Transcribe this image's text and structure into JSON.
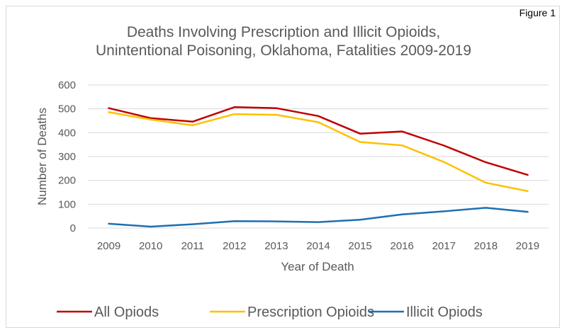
{
  "figure_label": "Figure 1",
  "chart_data": {
    "type": "line",
    "title_lines": [
      "Deaths Involving Prescription and Illicit Opioids,",
      "Unintentional Poisoning, Oklahoma, Fatalities 2009-2019"
    ],
    "xlabel": "Year of Death",
    "ylabel": "Number of Deaths",
    "categories": [
      "2009",
      "2010",
      "2011",
      "2012",
      "2013",
      "2014",
      "2015",
      "2016",
      "2017",
      "2018",
      "2019"
    ],
    "ylim": [
      0,
      600
    ],
    "yticks": [
      0,
      100,
      200,
      300,
      400,
      500,
      600
    ],
    "grid": true,
    "legend_position": "bottom",
    "series": [
      {
        "name": "All Opiods",
        "color": "#c00000",
        "values": [
          503,
          461,
          446,
          507,
          503,
          470,
          396,
          405,
          346,
          276,
          223
        ]
      },
      {
        "name": "Prescription Opioids",
        "color": "#ffc000",
        "values": [
          486,
          455,
          431,
          478,
          475,
          444,
          361,
          347,
          277,
          190,
          155
        ]
      },
      {
        "name": "Illicit Opiods",
        "color": "#1f6fb2",
        "values": [
          18,
          6,
          16,
          29,
          28,
          25,
          35,
          57,
          70,
          85,
          68
        ]
      }
    ]
  }
}
